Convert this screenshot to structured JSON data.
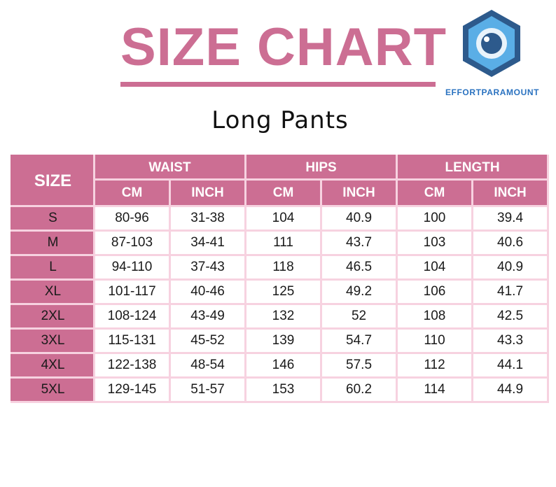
{
  "header": {
    "title": "SIZE CHART",
    "subtitle": "Long Pants",
    "brand": "EFFORTPARAMOUNT",
    "logo_icon": "camera-lens-hexagon-icon"
  },
  "colors": {
    "accent": "#cc6e93",
    "grid": "#f7d2e0",
    "brand": "#2a72c0"
  },
  "table": {
    "size_header": "SIZE",
    "groups": [
      "WAIST",
      "HIPS",
      "LENGTH"
    ],
    "units": [
      "CM",
      "INCH",
      "CM",
      "INCH",
      "CM",
      "INCH"
    ],
    "rows": [
      [
        "S",
        "80-96",
        "31-38",
        "104",
        "40.9",
        "100",
        "39.4"
      ],
      [
        "M",
        "87-103",
        "34-41",
        "111",
        "43.7",
        "103",
        "40.6"
      ],
      [
        "L",
        "94-110",
        "37-43",
        "118",
        "46.5",
        "104",
        "40.9"
      ],
      [
        "XL",
        "101-117",
        "40-46",
        "125",
        "49.2",
        "106",
        "41.7"
      ],
      [
        "2XL",
        "108-124",
        "43-49",
        "132",
        "52",
        "108",
        "42.5"
      ],
      [
        "3XL",
        "115-131",
        "45-52",
        "139",
        "54.7",
        "110",
        "43.3"
      ],
      [
        "4XL",
        "122-138",
        "48-54",
        "146",
        "57.5",
        "112",
        "44.1"
      ],
      [
        "5XL",
        "129-145",
        "51-57",
        "153",
        "60.2",
        "114",
        "44.9"
      ]
    ]
  }
}
